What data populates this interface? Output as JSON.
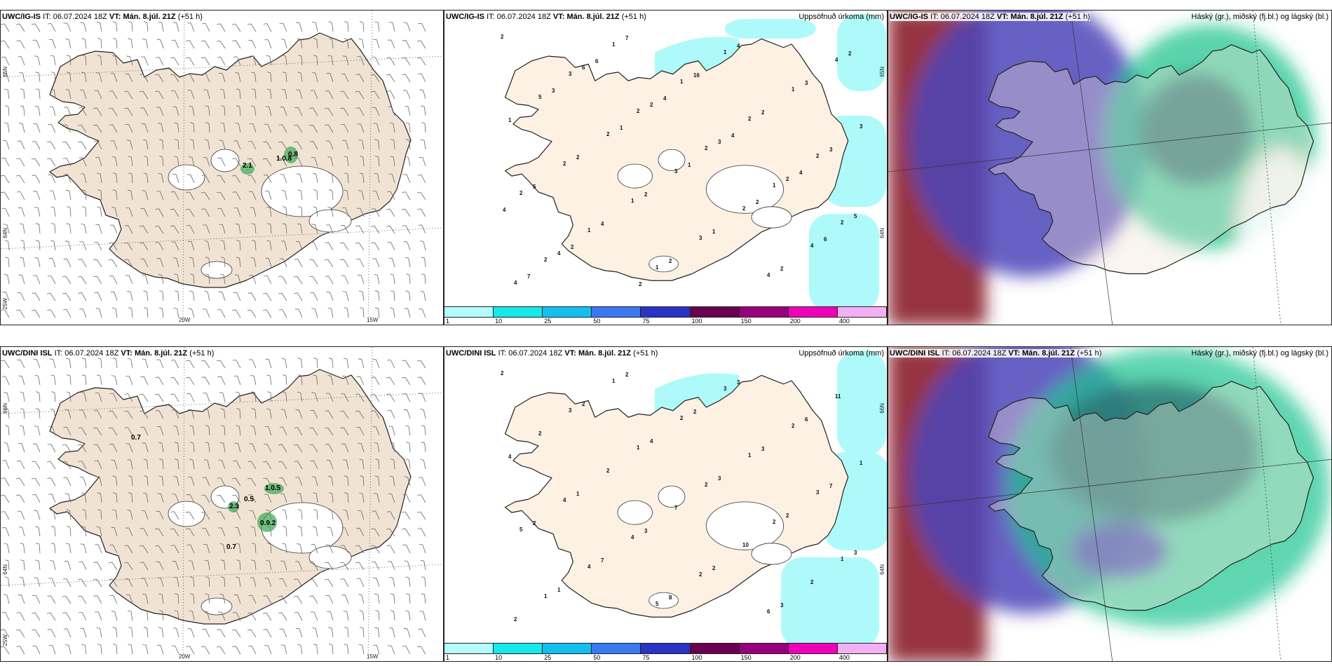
{
  "colors": {
    "land": "#f1e3d3",
    "sea": "#ffffff",
    "precip_cyan": "#aefafa",
    "green": "#3aa655",
    "cloud_high_red": "#8b1c2e",
    "cloud_mid_blue": "#4d46b8",
    "cloud_low_green": "#1fc48f"
  },
  "top_row": {
    "wind": {
      "model": "UWC/IG-IS",
      "it_label": "IT:",
      "it_value": "06.07.2024 18Z",
      "vt_label": "VT:",
      "vt_value": "Mán. 8.júl. 21Z",
      "lead": "(+51 h)",
      "lat_labels": [
        "65N",
        "64N",
        "25W"
      ],
      "lon_labels": [
        "20W",
        "15W"
      ],
      "annotations": [
        "2.1",
        "1.0.8",
        "0.8"
      ]
    },
    "precip": {
      "model": "UWC/IG-IS",
      "it_label": "IT:",
      "it_value": "06.07.2024 18Z",
      "vt_label": "VT:",
      "vt_value": "Mán. 8.júl. 21Z",
      "lead": "(+51 h)",
      "right_title": "Uppsöfnuð úrkoma (mm)",
      "lat_labels": [
        "65N",
        "64N"
      ]
    },
    "cloud": {
      "model": "UWC/IG-IS",
      "it_label": "IT:",
      "it_value": "06.07.2024 18Z",
      "vt_label": "VT:",
      "vt_value": "Mán. 8.júl. 21Z",
      "lead": "(+51 h)",
      "right_title": "Háský (gr.), miðský (fj.bl.) og lágský (bl.)"
    }
  },
  "bottom_row": {
    "wind": {
      "model": "UWC/DINI ISL",
      "it_label": "IT:",
      "it_value": "06.07.2024 18Z",
      "vt_label": "VT:",
      "vt_value": "Mán. 8.júl. 21Z",
      "lead": "(+51 h)",
      "lat_labels": [
        "66N",
        "64N",
        "25W"
      ],
      "lon_labels": [
        "20W",
        "15W"
      ],
      "annotations": [
        "0.7",
        "1.0.5",
        "2.3",
        "0.5",
        "0.9.2",
        "0.7"
      ]
    },
    "precip": {
      "model": "UWC/DINI ISL",
      "it_label": "IT:",
      "it_value": "06.07.2024 18Z",
      "vt_label": "VT:",
      "vt_value": "Mán. 8.júl. 21Z",
      "lead": "(+51 h)",
      "right_title": "Uppsöfnuð úrkoma (mm)",
      "lat_labels": [
        "66N",
        "64N"
      ]
    },
    "cloud": {
      "model": "UWC/DINI ISL",
      "it_label": "IT:",
      "it_value": "06.07.2024 18Z",
      "vt_label": "VT:",
      "vt_value": "Mán. 8.júl. 21Z",
      "lead": "(+51 h)",
      "right_title": "Háský (gr.), miðský (fj.bl.) og lágský (bl.)"
    }
  },
  "colorbar": {
    "colors": [
      "#b4fbfb",
      "#14eaea",
      "#11c0ee",
      "#3a78f0",
      "#2b32c4",
      "#6b0052",
      "#98007e",
      "#f000b8",
      "#f4b0f4"
    ],
    "ticks": [
      "1",
      "10",
      "25",
      "50",
      "75",
      "100",
      "150",
      "200",
      "400"
    ]
  },
  "precip_numbers_top": [
    "2",
    "3",
    "2",
    "2",
    "1",
    "2",
    "2",
    "1",
    "1",
    "2",
    "2",
    "2",
    "1",
    "1",
    "1",
    "1",
    "3",
    "2",
    "1",
    "3",
    "4",
    "4",
    "5",
    "2",
    "3",
    "2",
    "4",
    "4",
    "6",
    "2",
    "3",
    "2",
    "5",
    "4",
    "7",
    "16",
    "2",
    "3",
    "5",
    "4",
    "2",
    "4",
    "3",
    "1",
    "2",
    "2",
    "1",
    "2",
    "2",
    "3",
    "1",
    "1",
    "2",
    "6",
    "7",
    "6",
    "4",
    "4",
    "4",
    "4",
    "2",
    "2"
  ],
  "precip_numbers_bottom": [
    "2",
    "3",
    "1",
    "2",
    "2",
    "1",
    "1",
    "1",
    "2",
    "1",
    "3",
    "5",
    "4",
    "5",
    "3",
    "2",
    "1",
    "4",
    "4",
    "2",
    "6",
    "11",
    "2",
    "2",
    "7",
    "10",
    "2",
    "2",
    "2",
    "4",
    "3",
    "2",
    "3",
    "1",
    "2",
    "2",
    "3",
    "7",
    "2",
    "7",
    "8",
    "3",
    "6",
    "4",
    "1",
    "3",
    "2",
    "3"
  ]
}
